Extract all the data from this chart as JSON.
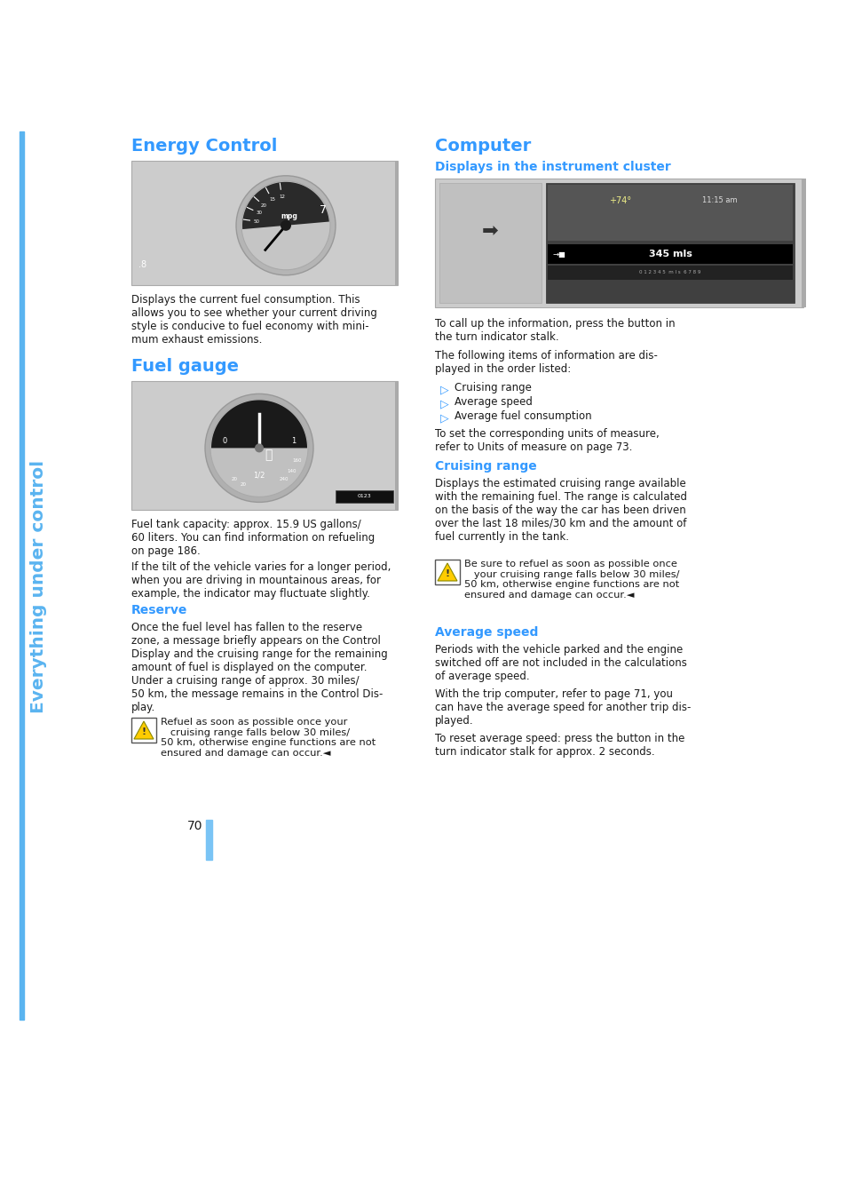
{
  "page_bg": "#ffffff",
  "sidebar_color": "#5ab4f0",
  "sidebar_text": "Everything under control",
  "heading_color": "#3399ff",
  "subheading_color": "#3399ff",
  "body_text_color": "#1a1a1a",
  "page_number": "70",
  "page_bar_color": "#7ac4f5",
  "section1_title": "Energy Control",
  "section1_body": "Displays the current fuel consumption. This\nallows you to see whether your current driving\nstyle is conducive to fuel economy with mini-\nmum exhaust emissions.",
  "section2_title": "Fuel gauge",
  "section2_body1": "Fuel tank capacity: approx. 15.9 US gallons/\n60 liters. You can find information on refueling\non page 186.",
  "section2_body2": "If the tilt of the vehicle varies for a longer period,\nwhen you are driving in mountainous areas, for\nexample, the indicator may fluctuate slightly.",
  "section2_reserve_head": "Reserve",
  "section2_reserve_body": "Once the fuel level has fallen to the reserve\nzone, a message briefly appears on the Control\nDisplay and the cruising range for the remaining\namount of fuel is displayed on the computer.\nUnder a cruising range of approx. 30 miles/\n50 km, the message remains in the Control Dis-\nplay.",
  "section2_warning": "Refuel as soon as possible once your\n   cruising range falls below 30 miles/\n50 km, otherwise engine functions are not\nensured and damage can occur.◄",
  "section3_title": "Computer",
  "section3_sub1": "Displays in the instrument cluster",
  "section3_body1": "To call up the information, press the button in\nthe turn indicator stalk.",
  "section3_body2": "The following items of information are dis-\nplayed in the order listed:",
  "section3_bullets": [
    "Cruising range",
    "Average speed",
    "Average fuel consumption"
  ],
  "section3_body3": "To set the corresponding units of measure,\nrefer to Units of measure on page 73.",
  "section3_sub2": "Cruising range",
  "section3_cr_body": "Displays the estimated cruising range available\nwith the remaining fuel. The range is calculated\non the basis of the way the car has been driven\nover the last 18 miles/30 km and the amount of\nfuel currently in the tank.",
  "section3_warning": "Be sure to refuel as soon as possible once\n   your cruising range falls below 30 miles/\n50 km, otherwise engine functions are not\nensured and damage can occur.◄",
  "section3_sub3": "Average speed",
  "section3_as_body1": "Periods with the vehicle parked and the engine\nswitched off are not included in the calculations\nof average speed.",
  "section3_as_body2": "With the trip computer, refer to page 71, you\ncan have the average speed for another trip dis-\nplayed.",
  "section3_as_body3": "To reset average speed: press the button in the\nturn indicator stalk for approx. 2 seconds."
}
